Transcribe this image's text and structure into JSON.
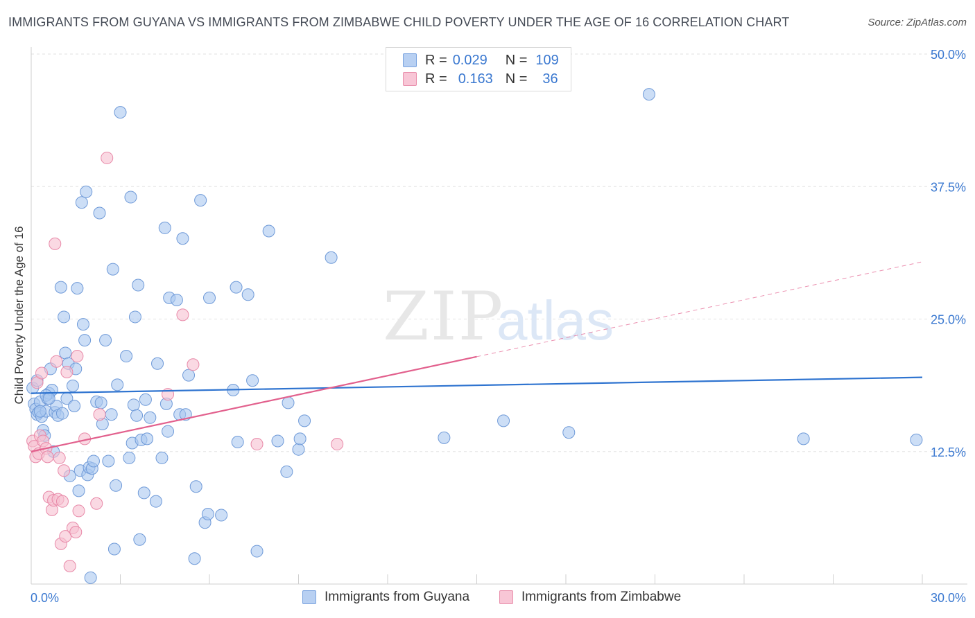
{
  "title": "IMMIGRANTS FROM GUYANA VS IMMIGRANTS FROM ZIMBABWE CHILD POVERTY UNDER THE AGE OF 16 CORRELATION CHART",
  "source": "Source: ZipAtlas.com",
  "watermark": {
    "zip": "ZIP",
    "atlas": "atlas"
  },
  "legend_top": [
    {
      "r_label": "R =",
      "r_value": "0.029",
      "n_label": "N =",
      "n_value": "109"
    },
    {
      "r_label": "R =",
      "r_value": "0.163",
      "n_label": "N =",
      "n_value": "36"
    }
  ],
  "colors": {
    "guyana_fill": "#aac8f0",
    "guyana_stroke": "#6f9ad8",
    "guyana_line": "#2f74d0",
    "zimbabwe_fill": "#f7bfd1",
    "zimbabwe_stroke": "#e889a8",
    "zimbabwe_line": "#e2608d",
    "tick_label": "#3a78d0",
    "grid": "#e2e2e2"
  },
  "chart_data": {
    "type": "scatter",
    "title": "IMMIGRANTS FROM GUYANA VS IMMIGRANTS FROM ZIMBABWE CHILD POVERTY UNDER THE AGE OF 16 CORRELATION CHART",
    "xlabel": "",
    "ylabel": "Child Poverty Under the Age of 16",
    "xlim": [
      0,
      30
    ],
    "ylim": [
      0,
      50
    ],
    "x_tick_labels": [
      "0.0%",
      "30.0%"
    ],
    "y_ticks": [
      12.5,
      25.0,
      37.5,
      50.0
    ],
    "y_tick_labels": [
      "12.5%",
      "25.0%",
      "37.5%",
      "50.0%"
    ],
    "grid": "horizontal dashed",
    "legend_position": "bottom",
    "series": [
      {
        "name": "Immigrants from Guyana",
        "r": 0.029,
        "n": 109,
        "trend": {
          "x": [
            0,
            30
          ],
          "y": [
            18.0,
            19.5
          ],
          "dashed_from": null
        },
        "points": [
          [
            0.05,
            18.5
          ],
          [
            0.1,
            17.0
          ],
          [
            0.15,
            16.5
          ],
          [
            0.2,
            16.0
          ],
          [
            0.25,
            16.2
          ],
          [
            0.3,
            17.2
          ],
          [
            0.35,
            15.8
          ],
          [
            0.4,
            14.5
          ],
          [
            0.45,
            14.0
          ],
          [
            0.5,
            16.3
          ],
          [
            0.55,
            17.5
          ],
          [
            0.6,
            18.0
          ],
          [
            0.65,
            20.3
          ],
          [
            0.7,
            18.3
          ],
          [
            0.75,
            12.5
          ],
          [
            0.8,
            16.2
          ],
          [
            0.85,
            16.8
          ],
          [
            0.9,
            15.9
          ],
          [
            1.0,
            28.0
          ],
          [
            1.1,
            25.2
          ],
          [
            1.15,
            21.8
          ],
          [
            1.2,
            17.5
          ],
          [
            1.25,
            20.8
          ],
          [
            1.3,
            10.2
          ],
          [
            1.4,
            18.7
          ],
          [
            1.45,
            16.8
          ],
          [
            1.5,
            20.3
          ],
          [
            1.55,
            27.9
          ],
          [
            1.6,
            8.8
          ],
          [
            1.65,
            10.7
          ],
          [
            1.7,
            36.0
          ],
          [
            1.75,
            24.5
          ],
          [
            1.8,
            23.0
          ],
          [
            1.85,
            37.0
          ],
          [
            1.9,
            10.3
          ],
          [
            1.95,
            11.0
          ],
          [
            2.0,
            0.6
          ],
          [
            2.05,
            10.9
          ],
          [
            2.1,
            11.6
          ],
          [
            2.2,
            17.2
          ],
          [
            2.3,
            35.0
          ],
          [
            2.4,
            15.1
          ],
          [
            2.5,
            23.0
          ],
          [
            2.6,
            11.6
          ],
          [
            2.7,
            16.0
          ],
          [
            2.75,
            29.7
          ],
          [
            2.8,
            3.3
          ],
          [
            2.85,
            9.3
          ],
          [
            2.9,
            18.8
          ],
          [
            3.0,
            44.5
          ],
          [
            3.2,
            21.5
          ],
          [
            3.3,
            11.9
          ],
          [
            3.35,
            36.5
          ],
          [
            3.4,
            13.3
          ],
          [
            3.45,
            16.9
          ],
          [
            3.5,
            25.2
          ],
          [
            3.55,
            15.9
          ],
          [
            3.6,
            28.2
          ],
          [
            3.65,
            4.2
          ],
          [
            3.7,
            13.6
          ],
          [
            3.8,
            8.6
          ],
          [
            3.85,
            17.4
          ],
          [
            3.9,
            13.7
          ],
          [
            4.0,
            15.7
          ],
          [
            4.2,
            7.8
          ],
          [
            4.25,
            20.8
          ],
          [
            4.4,
            11.9
          ],
          [
            4.5,
            33.6
          ],
          [
            4.55,
            17.0
          ],
          [
            4.6,
            14.4
          ],
          [
            4.65,
            27.0
          ],
          [
            4.9,
            26.8
          ],
          [
            5.0,
            16.0
          ],
          [
            5.1,
            32.6
          ],
          [
            5.2,
            16.0
          ],
          [
            5.3,
            19.7
          ],
          [
            5.5,
            2.4
          ],
          [
            5.55,
            9.2
          ],
          [
            5.7,
            36.2
          ],
          [
            5.85,
            5.8
          ],
          [
            5.95,
            6.6
          ],
          [
            6.0,
            27.0
          ],
          [
            6.4,
            6.5
          ],
          [
            6.8,
            18.3
          ],
          [
            6.9,
            28.0
          ],
          [
            6.95,
            13.4
          ],
          [
            7.3,
            27.3
          ],
          [
            7.45,
            19.2
          ],
          [
            7.6,
            3.1
          ],
          [
            8.0,
            33.3
          ],
          [
            8.3,
            13.5
          ],
          [
            8.6,
            10.6
          ],
          [
            8.65,
            17.1
          ],
          [
            9.0,
            12.7
          ],
          [
            9.05,
            13.7
          ],
          [
            9.2,
            15.4
          ],
          [
            10.1,
            30.8
          ],
          [
            13.9,
            13.8
          ],
          [
            15.9,
            15.4
          ],
          [
            18.1,
            14.3
          ],
          [
            20.8,
            46.2
          ],
          [
            26.0,
            13.7
          ],
          [
            29.8,
            13.6
          ],
          [
            0.2,
            19.2
          ],
          [
            0.3,
            16.3
          ],
          [
            0.5,
            17.8
          ],
          [
            0.6,
            17.5
          ],
          [
            1.05,
            16.1
          ],
          [
            2.35,
            17.1
          ]
        ]
      },
      {
        "name": "Immigrants from Zimbabwe",
        "r": 0.163,
        "n": 36,
        "trend": {
          "x": [
            0,
            30
          ],
          "y": [
            12.5,
            30.4
          ],
          "dashed_from": 15
        },
        "points": [
          [
            0.05,
            13.5
          ],
          [
            0.1,
            13.0
          ],
          [
            0.15,
            12.0
          ],
          [
            0.2,
            19.0
          ],
          [
            0.25,
            12.3
          ],
          [
            0.3,
            14.0
          ],
          [
            0.35,
            19.9
          ],
          [
            0.4,
            13.5
          ],
          [
            0.5,
            12.8
          ],
          [
            0.55,
            12.0
          ],
          [
            0.6,
            8.2
          ],
          [
            0.7,
            7.0
          ],
          [
            0.75,
            7.9
          ],
          [
            0.8,
            32.1
          ],
          [
            0.85,
            21.0
          ],
          [
            0.9,
            8.0
          ],
          [
            0.95,
            11.9
          ],
          [
            1.0,
            3.8
          ],
          [
            1.05,
            7.8
          ],
          [
            1.1,
            10.7
          ],
          [
            1.15,
            4.5
          ],
          [
            1.2,
            20.0
          ],
          [
            1.3,
            1.7
          ],
          [
            1.4,
            5.3
          ],
          [
            1.5,
            4.9
          ],
          [
            1.55,
            21.5
          ],
          [
            1.6,
            6.9
          ],
          [
            1.8,
            13.7
          ],
          [
            2.2,
            7.6
          ],
          [
            2.3,
            16.0
          ],
          [
            2.55,
            40.2
          ],
          [
            4.6,
            17.9
          ],
          [
            5.1,
            25.4
          ],
          [
            5.45,
            20.7
          ],
          [
            7.6,
            13.2
          ],
          [
            10.3,
            13.2
          ]
        ]
      }
    ]
  }
}
